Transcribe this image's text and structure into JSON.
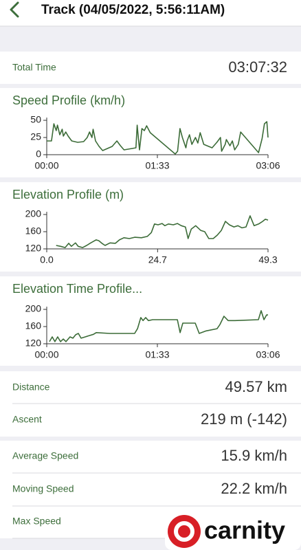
{
  "header": {
    "title": "Track (04/05/2022, 5:56:11AM)"
  },
  "total_time": {
    "label": "Total Time",
    "value": "03:07:32"
  },
  "chart_data": [
    {
      "type": "line",
      "title": "Speed Profile (km/h)",
      "color": "#3b6b37",
      "x": [
        0,
        4,
        6,
        8,
        9,
        11,
        13,
        14,
        16,
        18,
        21,
        26,
        31,
        34,
        36,
        38,
        39,
        41,
        44,
        47,
        51,
        55,
        59,
        62,
        65,
        75,
        76,
        78,
        80,
        82,
        84,
        87,
        108,
        110,
        112,
        114,
        117,
        118,
        120,
        122,
        125,
        127,
        129,
        132,
        139,
        143,
        146,
        147,
        150,
        151,
        154,
        156,
        158,
        161,
        163,
        178,
        181,
        183,
        185,
        186
      ],
      "values": [
        20,
        20,
        45,
        35,
        43,
        29,
        37,
        27,
        33,
        27,
        20,
        18,
        19,
        25,
        33,
        25,
        37,
        20,
        12,
        6,
        9,
        12,
        20,
        13,
        7,
        10,
        43,
        7,
        38,
        35,
        42,
        32,
        1,
        5,
        38,
        25,
        10,
        20,
        29,
        15,
        25,
        17,
        32,
        15,
        10,
        18,
        25,
        5,
        15,
        22,
        13,
        20,
        7,
        15,
        33,
        3,
        23,
        45,
        48,
        25
      ],
      "xlim": [
        0,
        186
      ],
      "ylim": [
        0,
        50
      ],
      "xticks": [
        {
          "value": 0,
          "label": "00:00"
        },
        {
          "value": 93,
          "label": "01:33"
        },
        {
          "value": 186,
          "label": "03:06"
        }
      ],
      "yticks": [
        0,
        25,
        50
      ]
    },
    {
      "type": "line",
      "title": "Elevation Profile (m)",
      "color": "#3b6b37",
      "x": [
        2.1,
        3.1,
        4.1,
        4.9,
        5.5,
        6.4,
        7.0,
        8.0,
        8.9,
        9.8,
        11.0,
        11.6,
        12.3,
        13.0,
        14.1,
        15.3,
        16.2,
        17.2,
        18.4,
        19.6,
        21.1,
        22.4,
        23.3,
        24.0,
        24.8,
        25.7,
        26.3,
        27.1,
        28.2,
        29.1,
        30.0,
        30.9,
        31.5,
        32.2,
        33.2,
        34.3,
        35.2,
        36.1,
        37.1,
        38.0,
        38.9,
        39.8,
        40.7,
        41.7,
        42.6,
        43.5,
        44.4,
        45.3,
        46.2,
        47.2,
        48.1,
        48.7,
        49.3
      ],
      "values": [
        128,
        126,
        123,
        133,
        126,
        134,
        126,
        123,
        128,
        134,
        141,
        139,
        133,
        128,
        134,
        133,
        141,
        146,
        144,
        147,
        146,
        149,
        158,
        178,
        176,
        179,
        174,
        178,
        176,
        179,
        174,
        171,
        144,
        166,
        174,
        163,
        160,
        144,
        144,
        152,
        163,
        184,
        176,
        171,
        174,
        169,
        171,
        197,
        174,
        178,
        184,
        189,
        187
      ],
      "xlim": [
        0,
        49.3
      ],
      "ylim": [
        120,
        200
      ],
      "xticks": [
        {
          "value": 0,
          "label": "0.0"
        },
        24.7,
        49.3
      ],
      "yticks": [
        120,
        160,
        200
      ]
    },
    {
      "type": "line",
      "title": "Elevation Time Profile...",
      "color": "#3b6b37",
      "x": [
        2.3,
        4.6,
        6.9,
        9.2,
        11.6,
        13.9,
        16.2,
        19.6,
        22.0,
        24.3,
        26.6,
        28.9,
        32.4,
        35.8,
        39.3,
        41.6,
        53.1,
        73.9,
        76.3,
        79.1,
        80.9,
        83.2,
        85.5,
        89.0,
        109.8,
        112.1,
        114.4,
        117.9,
        124.8,
        128.2,
        134.0,
        143.2,
        145.6,
        149.0,
        152.5,
        158.3,
        177.9,
        180.2,
        182.6,
        184.8,
        186.0
      ],
      "values": [
        125,
        136,
        125,
        136,
        125,
        131,
        125,
        136,
        133,
        141,
        144,
        133,
        136,
        139,
        142,
        146,
        144,
        144,
        155,
        181,
        174,
        181,
        174,
        176,
        176,
        146,
        168,
        168,
        168,
        144,
        150,
        155,
        165,
        184,
        174,
        174,
        176,
        197,
        176,
        187,
        187
      ],
      "xlim": [
        0,
        186
      ],
      "ylim": [
        120,
        200
      ],
      "xticks": [
        {
          "value": 0,
          "label": "00:00"
        },
        {
          "value": 93,
          "label": "01:33"
        },
        {
          "value": 186,
          "label": "03:06"
        }
      ],
      "yticks": [
        120,
        160,
        200
      ]
    }
  ],
  "distance_group": [
    {
      "label": "Distance",
      "value": "49.57 km"
    },
    {
      "label": "Ascent",
      "value": "219 m (-142)"
    }
  ],
  "speed_group": [
    {
      "label": "Average Speed",
      "value": "15.9 km/h"
    },
    {
      "label": "Moving Speed",
      "value": "22.2 km/h"
    },
    {
      "label": "Max Speed"
    }
  ],
  "logo": {
    "text": "carnity"
  }
}
